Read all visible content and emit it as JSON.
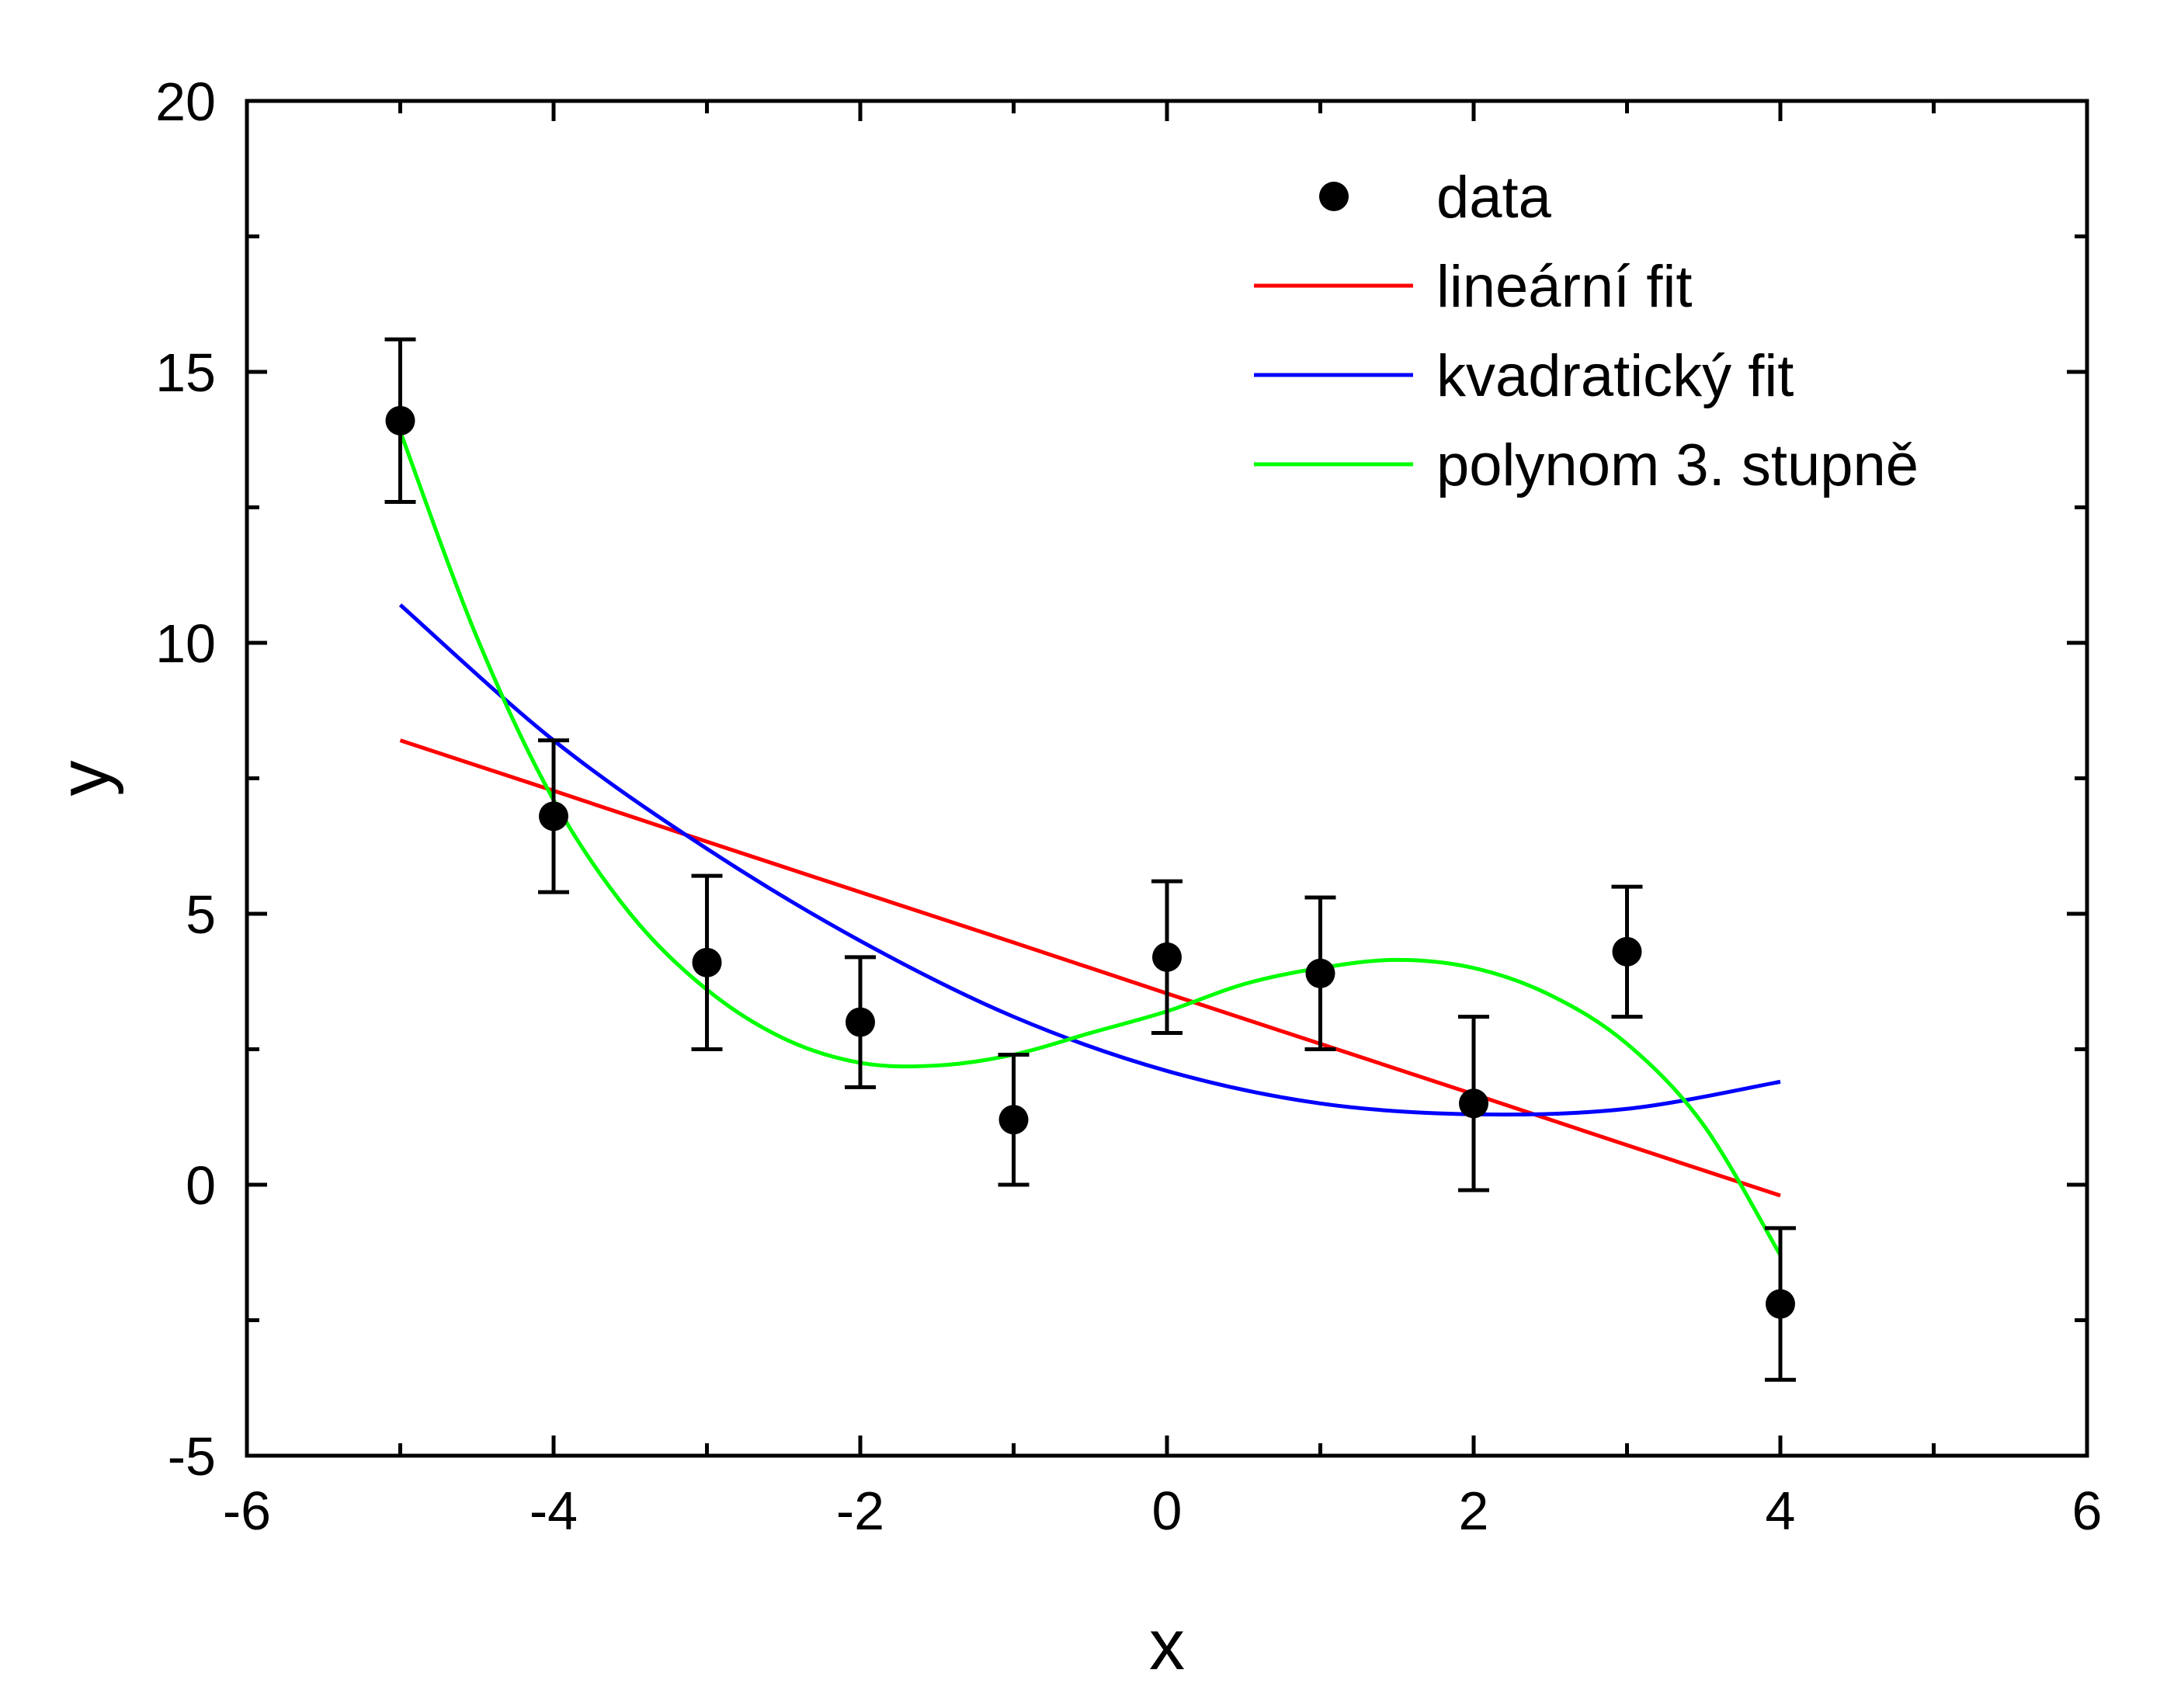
{
  "chart_data": {
    "type": "scatter",
    "title": "",
    "xlabel": "x",
    "ylabel": "y",
    "xlim": [
      -6,
      6
    ],
    "ylim": [
      -5,
      20
    ],
    "x_ticks": [
      -6,
      -4,
      -2,
      0,
      2,
      4,
      6
    ],
    "y_ticks": [
      -5,
      0,
      5,
      10,
      15,
      20
    ],
    "x_tick_labels": [
      "-6",
      "-4",
      "-2",
      "0",
      "2",
      "4",
      "6"
    ],
    "y_tick_labels": [
      "-5",
      "0",
      "5",
      "10",
      "15",
      "20"
    ],
    "grid": false,
    "legend_position": "top-right",
    "series": [
      {
        "name": "data",
        "kind": "scatter",
        "color": "#000000",
        "x": [
          -5,
          -4,
          -3,
          -2,
          -1,
          0,
          1,
          2,
          3,
          4
        ],
        "y": [
          14.1,
          6.8,
          4.1,
          3.0,
          1.2,
          4.2,
          3.9,
          1.5,
          4.3,
          -2.2
        ],
        "y_err": [
          1.5,
          1.4,
          1.6,
          1.2,
          1.2,
          1.4,
          1.4,
          1.6,
          1.2,
          1.4
        ]
      },
      {
        "name": "lineární fit",
        "kind": "line",
        "color": "#ff0000",
        "x": [
          -5,
          -4,
          -3,
          -2,
          -1,
          0,
          1,
          2,
          3,
          4
        ],
        "y": [
          8.2,
          7.27,
          6.33,
          5.4,
          4.47,
          3.53,
          2.6,
          1.67,
          0.73,
          -0.2
        ]
      },
      {
        "name": "kvadratický fit",
        "kind": "line",
        "color": "#0000ff",
        "x": [
          -5,
          -4,
          -3,
          -2,
          -1,
          0,
          1,
          2,
          3,
          4
        ],
        "y": [
          10.7,
          8.2,
          6.2,
          4.5,
          3.1,
          2.1,
          1.5,
          1.3,
          1.4,
          1.9
        ]
      },
      {
        "name": "polynom 3. stupně",
        "kind": "line",
        "color": "#00ff00",
        "x": [
          -5,
          -4.5,
          -4,
          -3.5,
          -3,
          -2.5,
          -2,
          -1.5,
          -1,
          -0.5,
          0,
          0.5,
          1,
          1.5,
          2,
          2.5,
          3,
          3.5,
          4
        ],
        "y": [
          13.9,
          10.1,
          7.1,
          5.0,
          3.6,
          2.7,
          2.25,
          2.2,
          2.4,
          2.8,
          3.2,
          3.7,
          4.0,
          4.15,
          4.0,
          3.5,
          2.6,
          1.1,
          -1.3
        ]
      }
    ]
  }
}
